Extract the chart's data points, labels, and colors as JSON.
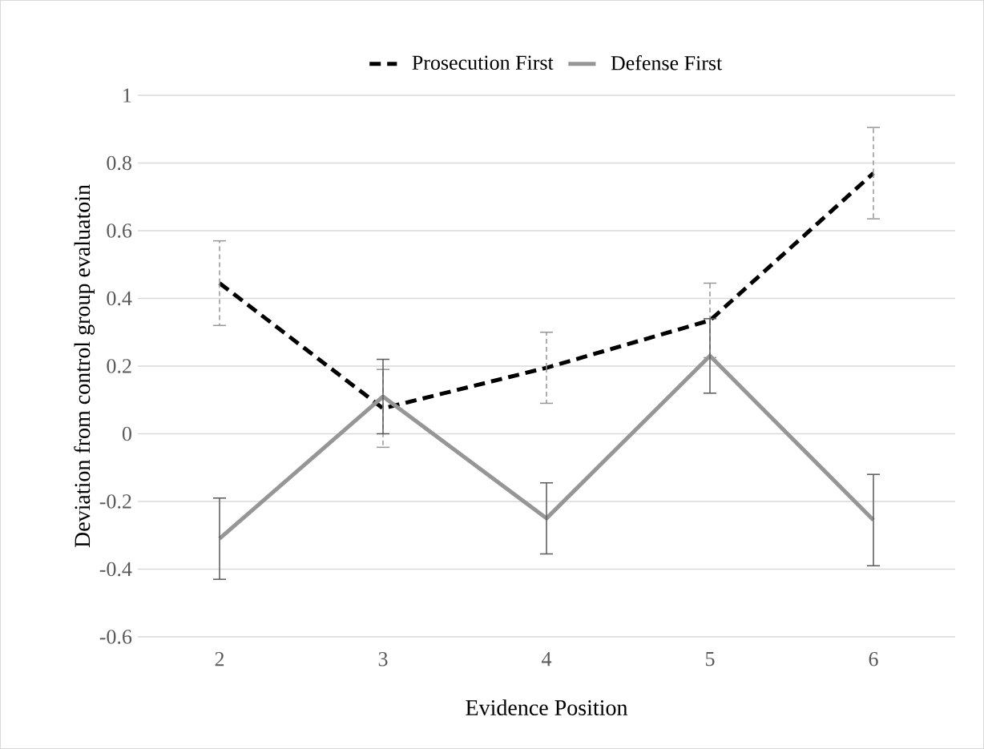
{
  "chart_data": {
    "type": "line",
    "xlabel": "Evidence Position",
    "ylabel": "Deviation from control group evaluatoin",
    "categories": [
      "2",
      "3",
      "4",
      "5",
      "6"
    ],
    "series": [
      {
        "name": "Prosecution First",
        "color": "#000000",
        "line_style": "dashed",
        "values": [
          0.445,
          0.075,
          0.195,
          0.335,
          0.77
        ],
        "errors": [
          0.125,
          0.115,
          0.105,
          0.11,
          0.135
        ]
      },
      {
        "name": "Defense First",
        "color": "#969696",
        "line_style": "solid",
        "values": [
          -0.31,
          0.11,
          -0.25,
          0.23,
          -0.255
        ],
        "errors": [
          0.12,
          0.11,
          0.105,
          0.11,
          0.135
        ]
      }
    ],
    "ylim": [
      -0.6,
      1
    ],
    "yticks": [
      -0.6,
      -0.4,
      -0.2,
      0,
      0.2,
      0.4,
      0.6,
      0.8,
      1
    ],
    "grid": "y",
    "legend": "top",
    "marker": "none"
  }
}
